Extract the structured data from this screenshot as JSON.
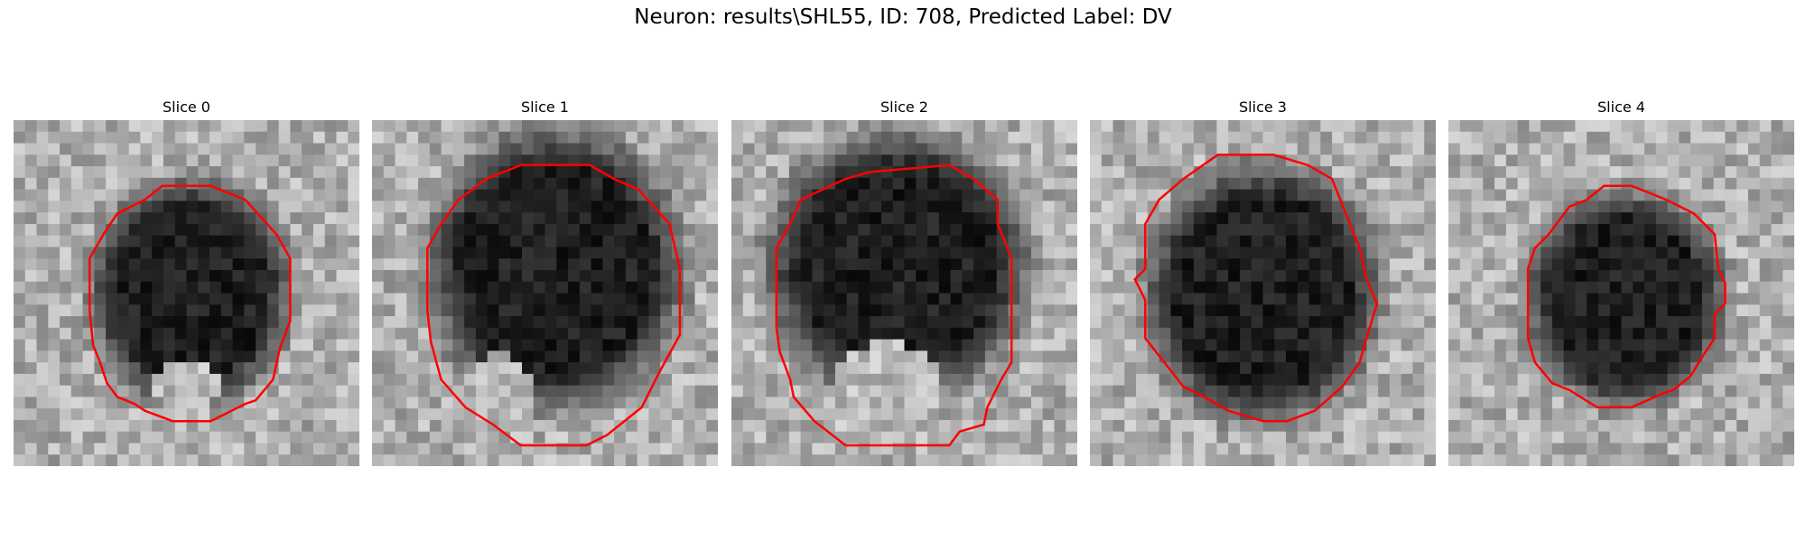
{
  "figure": {
    "title": "Neuron: results\\SHL55, ID: 708, Predicted Label: DV"
  },
  "colors": {
    "contour": "#ff0000",
    "background": "#ffffff"
  },
  "panels": [
    {
      "title": "Slice 0"
    },
    {
      "title": "Slice 1"
    },
    {
      "title": "Slice 2"
    },
    {
      "title": "Slice 3"
    },
    {
      "title": "Slice 4"
    }
  ]
}
